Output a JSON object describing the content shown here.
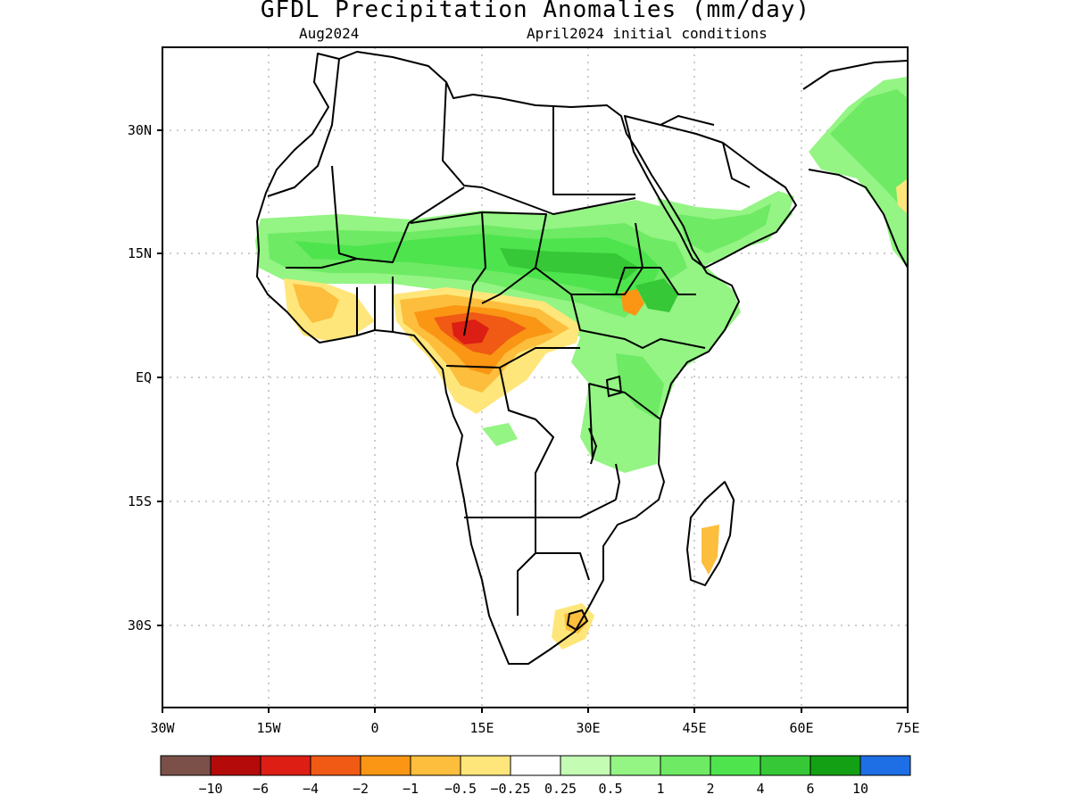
{
  "title": "GFDL Precipitation Anomalies (mm/day)",
  "subtitle_left": "Aug2024",
  "subtitle_right": "April2024 initial conditions",
  "map": {
    "lon_range": [
      -30,
      75
    ],
    "lat_range": [
      -40,
      40
    ],
    "x_ticks": [
      "30W",
      "15W",
      "0",
      "15E",
      "30E",
      "45E",
      "60E",
      "75E"
    ],
    "y_ticks": [
      "30N",
      "15N",
      "EQ",
      "15S",
      "30S"
    ],
    "gridlines": true
  },
  "colorbar": {
    "colors": [
      "#7a5048",
      "#b40a0a",
      "#dc1e14",
      "#f05a14",
      "#fa9614",
      "#fcbe3c",
      "#ffe67a",
      "#ffffff",
      "#c4fcb4",
      "#94f484",
      "#6eea64",
      "#4ee44e",
      "#36c836",
      "#14a014",
      "#1e6ee6"
    ],
    "labels": [
      "-10",
      "-6",
      "-4",
      "-2",
      "-1",
      "-0.5",
      "-0.25",
      "0.25",
      "0.5",
      "1",
      "2",
      "4",
      "6",
      "10"
    ]
  }
}
